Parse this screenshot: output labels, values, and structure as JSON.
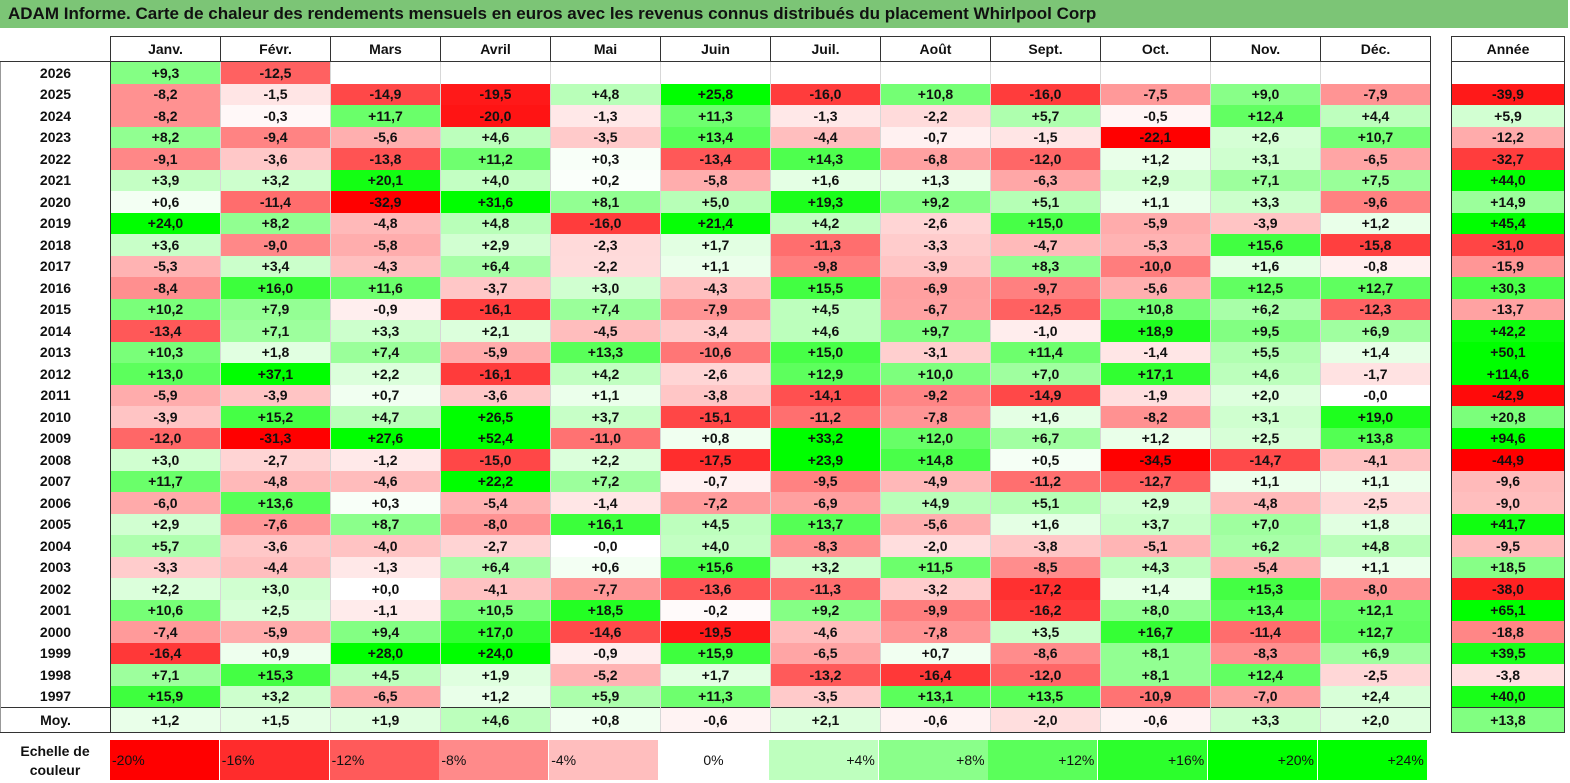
{
  "title": "ADAM Informe. Carte de chaleur des rendements mensuels en euros avec les revenus connus distribués du placement Whirlpool Corp",
  "chart_data": {
    "type": "heatmap",
    "title": "ADAM Informe. Carte de chaleur des rendements mensuels en euros avec les revenus connus distribués du placement Whirlpool Corp",
    "columns": [
      "Janv.",
      "Févr.",
      "Mars",
      "Avril",
      "Mai",
      "Juin",
      "Juil.",
      "Août",
      "Sept.",
      "Oct.",
      "Nov.",
      "Déc."
    ],
    "year_header": "Année",
    "rows": [
      {
        "year": "2026",
        "values": [
          "+9,3",
          "-12,5",
          "",
          "",
          "",
          "",
          "",
          "",
          "",
          "",
          "",
          ""
        ],
        "total": ""
      },
      {
        "year": "2025",
        "values": [
          "-8,2",
          "-1,5",
          "-14,9",
          "-19,5",
          "+4,8",
          "+25,8",
          "-16,0",
          "+10,8",
          "-16,0",
          "-7,5",
          "+9,0",
          "-7,9"
        ],
        "total": "-39,9"
      },
      {
        "year": "2024",
        "values": [
          "-8,2",
          "-0,3",
          "+11,7",
          "-20,0",
          "-1,3",
          "+11,3",
          "-1,3",
          "-2,2",
          "+5,7",
          "-0,5",
          "+12,4",
          "+4,4"
        ],
        "total": "+5,9"
      },
      {
        "year": "2023",
        "values": [
          "+8,2",
          "-9,4",
          "-5,6",
          "+4,6",
          "-3,5",
          "+13,4",
          "-4,4",
          "-0,7",
          "-1,5",
          "-22,1",
          "+2,6",
          "+10,7"
        ],
        "total": "-12,2"
      },
      {
        "year": "2022",
        "values": [
          "-9,1",
          "-3,6",
          "-13,8",
          "+11,2",
          "+0,3",
          "-13,4",
          "+14,3",
          "-6,8",
          "-12,0",
          "+1,2",
          "+3,1",
          "-6,5"
        ],
        "total": "-32,7"
      },
      {
        "year": "2021",
        "values": [
          "+3,9",
          "+3,2",
          "+20,1",
          "+4,0",
          "+0,2",
          "-5,8",
          "+1,6",
          "+1,3",
          "-6,3",
          "+2,9",
          "+7,1",
          "+7,5"
        ],
        "total": "+44,0"
      },
      {
        "year": "2020",
        "values": [
          "+0,6",
          "-11,4",
          "-32,9",
          "+31,6",
          "+8,1",
          "+5,0",
          "+19,3",
          "+9,2",
          "+5,1",
          "+1,1",
          "+3,3",
          "-9,6"
        ],
        "total": "+14,9"
      },
      {
        "year": "2019",
        "values": [
          "+24,0",
          "+8,2",
          "-4,8",
          "+4,8",
          "-16,0",
          "+21,4",
          "+4,2",
          "-2,6",
          "+15,0",
          "-5,9",
          "-3,9",
          "+1,2"
        ],
        "total": "+45,4"
      },
      {
        "year": "2018",
        "values": [
          "+3,6",
          "-9,0",
          "-5,8",
          "+2,9",
          "-2,3",
          "+1,7",
          "-11,3",
          "-3,3",
          "-4,7",
          "-5,3",
          "+15,6",
          "-15,8"
        ],
        "total": "-31,0"
      },
      {
        "year": "2017",
        "values": [
          "-5,3",
          "+3,4",
          "-4,3",
          "+6,4",
          "-2,2",
          "+1,1",
          "-9,8",
          "-3,9",
          "+8,3",
          "-10,0",
          "+1,6",
          "-0,8"
        ],
        "total": "-15,9"
      },
      {
        "year": "2016",
        "values": [
          "-8,4",
          "+16,0",
          "+11,6",
          "-3,7",
          "+3,0",
          "-4,3",
          "+15,5",
          "-6,9",
          "-9,7",
          "-5,6",
          "+12,5",
          "+12,7"
        ],
        "total": "+30,3"
      },
      {
        "year": "2015",
        "values": [
          "+10,2",
          "+7,9",
          "-0,9",
          "-16,1",
          "+7,4",
          "-7,9",
          "+4,5",
          "-6,7",
          "-12,5",
          "+10,8",
          "+6,2",
          "-12,3"
        ],
        "total": "-13,7"
      },
      {
        "year": "2014",
        "values": [
          "-13,4",
          "+7,1",
          "+3,3",
          "+2,1",
          "-4,5",
          "-3,4",
          "+4,6",
          "+9,7",
          "-1,0",
          "+18,9",
          "+9,5",
          "+6,9"
        ],
        "total": "+42,2"
      },
      {
        "year": "2013",
        "values": [
          "+10,3",
          "+1,8",
          "+7,4",
          "-5,9",
          "+13,3",
          "-10,6",
          "+15,0",
          "-3,1",
          "+11,4",
          "-1,4",
          "+5,5",
          "+1,4"
        ],
        "total": "+50,1"
      },
      {
        "year": "2012",
        "values": [
          "+13,0",
          "+37,1",
          "+2,2",
          "-16,1",
          "+4,2",
          "-2,6",
          "+12,9",
          "+10,0",
          "+7,0",
          "+17,1",
          "+4,6",
          "-1,7"
        ],
        "total": "+114,6"
      },
      {
        "year": "2011",
        "values": [
          "-5,9",
          "-3,9",
          "+0,7",
          "-3,6",
          "+1,1",
          "-3,8",
          "-14,1",
          "-9,2",
          "-14,9",
          "-1,9",
          "+2,0",
          "-0,0"
        ],
        "total": "-42,9"
      },
      {
        "year": "2010",
        "values": [
          "-3,9",
          "+15,2",
          "+4,7",
          "+26,5",
          "+3,7",
          "-15,1",
          "-11,2",
          "-7,8",
          "+1,6",
          "-8,2",
          "+3,1",
          "+19,0"
        ],
        "total": "+20,8"
      },
      {
        "year": "2009",
        "values": [
          "-12,0",
          "-31,3",
          "+27,6",
          "+52,4",
          "-11,0",
          "+0,8",
          "+33,2",
          "+12,0",
          "+6,7",
          "+1,2",
          "+2,5",
          "+13,8"
        ],
        "total": "+94,6"
      },
      {
        "year": "2008",
        "values": [
          "+3,0",
          "-2,7",
          "-1,2",
          "-15,0",
          "+2,2",
          "-17,5",
          "+23,9",
          "+14,8",
          "+0,5",
          "-34,5",
          "-14,7",
          "-4,1"
        ],
        "total": "-44,9"
      },
      {
        "year": "2007",
        "values": [
          "+11,7",
          "-4,8",
          "-4,6",
          "+22,2",
          "+7,2",
          "-0,7",
          "-9,5",
          "-4,9",
          "-11,2",
          "-12,7",
          "+1,1",
          "+1,1"
        ],
        "total": "-9,6"
      },
      {
        "year": "2006",
        "values": [
          "-6,0",
          "+13,6",
          "+0,3",
          "-5,4",
          "-1,4",
          "-7,2",
          "-6,9",
          "+4,9",
          "+5,1",
          "+2,9",
          "-4,8",
          "-2,5"
        ],
        "total": "-9,0"
      },
      {
        "year": "2005",
        "values": [
          "+2,9",
          "-7,6",
          "+8,7",
          "-8,0",
          "+16,1",
          "+4,5",
          "+13,7",
          "-5,6",
          "+1,6",
          "+3,7",
          "+7,0",
          "+1,8"
        ],
        "total": "+41,7"
      },
      {
        "year": "2004",
        "values": [
          "+5,7",
          "-3,6",
          "-4,0",
          "-2,7",
          "-0,0",
          "+4,0",
          "-8,3",
          "-2,0",
          "-3,8",
          "-5,1",
          "+6,2",
          "+4,8"
        ],
        "total": "-9,5"
      },
      {
        "year": "2003",
        "values": [
          "-3,3",
          "-4,4",
          "-1,3",
          "+6,4",
          "+0,6",
          "+15,6",
          "+3,2",
          "+11,5",
          "-8,5",
          "+4,3",
          "-5,4",
          "+1,1"
        ],
        "total": "+18,5"
      },
      {
        "year": "2002",
        "values": [
          "+2,2",
          "+3,0",
          "+0,0",
          "-4,1",
          "-7,7",
          "-13,6",
          "-11,3",
          "-3,2",
          "-17,2",
          "+1,4",
          "+15,3",
          "-8,0"
        ],
        "total": "-38,0"
      },
      {
        "year": "2001",
        "values": [
          "+10,6",
          "+2,5",
          "-1,1",
          "+10,5",
          "+18,5",
          "-0,2",
          "+9,2",
          "-9,9",
          "-16,2",
          "+8,0",
          "+13,4",
          "+12,1"
        ],
        "total": "+65,1"
      },
      {
        "year": "2000",
        "values": [
          "-7,4",
          "-5,9",
          "+9,4",
          "+17,0",
          "-14,6",
          "-19,5",
          "-4,6",
          "-7,8",
          "+3,5",
          "+16,7",
          "-11,4",
          "+12,7"
        ],
        "total": "-18,8"
      },
      {
        "year": "1999",
        "values": [
          "-16,4",
          "+0,9",
          "+28,0",
          "+24,0",
          "-0,9",
          "+15,9",
          "-6,5",
          "+0,7",
          "-8,6",
          "+8,1",
          "-8,3",
          "+6,9"
        ],
        "total": "+39,5"
      },
      {
        "year": "1998",
        "values": [
          "+7,1",
          "+15,3",
          "+4,5",
          "+1,9",
          "-5,2",
          "+1,7",
          "-13,2",
          "-16,4",
          "-12,0",
          "+8,1",
          "+12,4",
          "-2,5"
        ],
        "total": "-3,8"
      },
      {
        "year": "1997",
        "values": [
          "+15,9",
          "+3,2",
          "-6,5",
          "+1,2",
          "+5,9",
          "+11,3",
          "-3,5",
          "+13,1",
          "+13,5",
          "-10,9",
          "-7,0",
          "+2,4"
        ],
        "total": "+40,0"
      }
    ],
    "average": {
      "label": "Moy.",
      "values": [
        "+1,2",
        "+1,5",
        "+1,9",
        "+4,6",
        "+0,8",
        "-0,6",
        "+2,1",
        "-0,6",
        "-2,0",
        "-0,6",
        "+3,3",
        "+2,0"
      ],
      "total": "+13,8"
    },
    "legend": {
      "label": "Echelle de couleur",
      "stops": [
        {
          "label": "-20%",
          "value": -20
        },
        {
          "label": "-16%",
          "value": -16
        },
        {
          "label": "-12%",
          "value": -12
        },
        {
          "label": "-8%",
          "value": -8
        },
        {
          "label": "-4%",
          "value": -4
        },
        {
          "label": "0%",
          "value": 0
        },
        {
          "label": "+4%",
          "value": 4
        },
        {
          "label": "+8%",
          "value": 8
        },
        {
          "label": "+12%",
          "value": 12
        },
        {
          "label": "+16%",
          "value": 16
        },
        {
          "label": "+20%",
          "value": 20
        },
        {
          "label": "+24%",
          "value": 24
        }
      ]
    },
    "colors": {
      "negative": "#ff0000",
      "neutral": "#ffffff",
      "positive": "#00ff00",
      "title_bar": "#7cc576"
    }
  }
}
